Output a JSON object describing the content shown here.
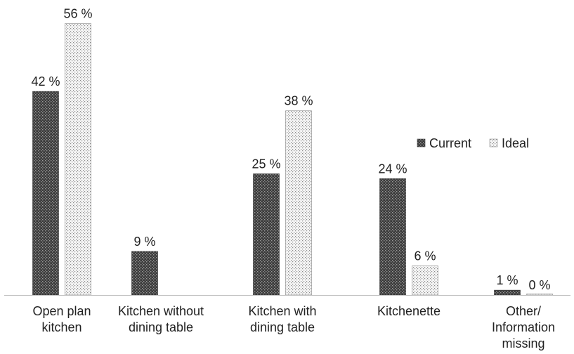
{
  "chart_data": {
    "type": "bar",
    "categories": [
      [
        "Open plan",
        "kitchen"
      ],
      [
        "Kitchen without",
        "dining table"
      ],
      [
        "Kitchen with",
        "dining table"
      ],
      [
        "Kitchenette"
      ],
      [
        "Other/",
        "Information",
        "missing"
      ]
    ],
    "series": [
      {
        "name": "Current",
        "values": [
          42,
          9,
          25,
          24,
          1
        ],
        "labels": [
          "42 %",
          "9 %",
          "25 %",
          "24 %",
          "1 %"
        ],
        "pattern": "dark-dots",
        "color": "#555555"
      },
      {
        "name": "Ideal",
        "values": [
          56,
          null,
          38,
          6,
          0
        ],
        "labels": [
          "56 %",
          "",
          "38 %",
          "6 %",
          "0 %"
        ],
        "pattern": "light-dots",
        "color": "#bbbbbb"
      }
    ],
    "ylim": [
      0,
      60
    ],
    "unit": "%",
    "legend_position": "right",
    "grid": false,
    "title": "",
    "xlabel": "",
    "ylabel": ""
  }
}
